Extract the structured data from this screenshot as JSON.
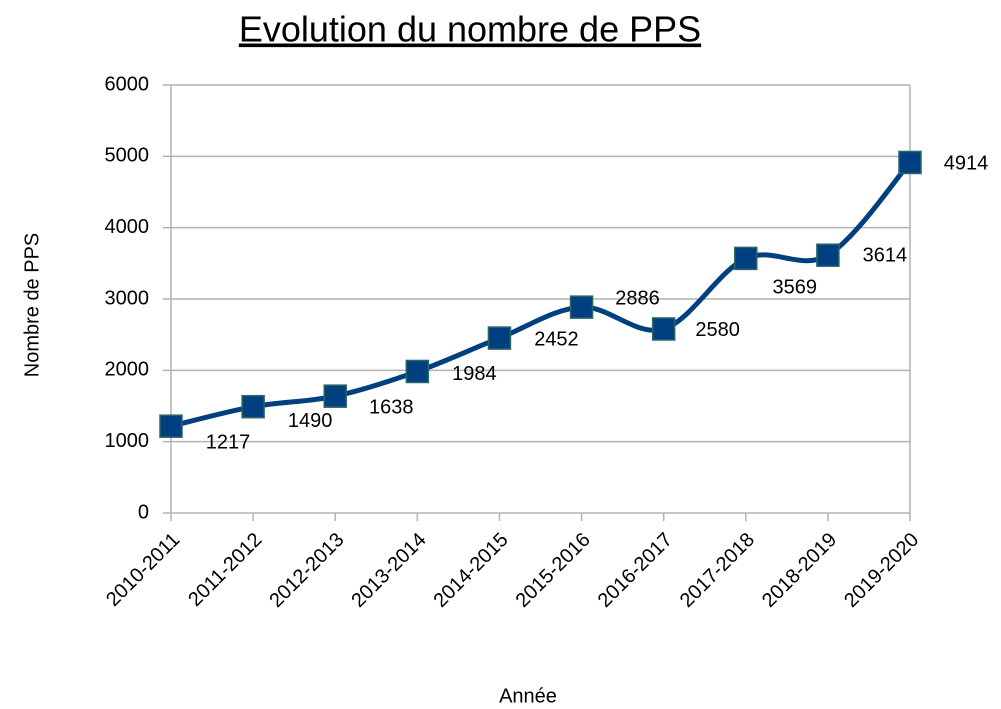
{
  "chart_data": {
    "type": "line",
    "title": "Evolution du nombre de PPS",
    "x_label": "Année",
    "y_label": "Nombre de PPS",
    "categories": [
      "2010-2011",
      "2011-2012",
      "2012-2013",
      "2013-2014",
      "2014-2015",
      "2015-2016",
      "2016-2017",
      "2017-2018",
      "2018-2019",
      "2019-2020"
    ],
    "series": [
      {
        "name": "Nombre de PPS",
        "color": "#004080",
        "values": [
          1217,
          1490,
          1638,
          1984,
          2452,
          2886,
          2580,
          3569,
          3614,
          4914
        ]
      }
    ],
    "ylim": [
      0,
      6000
    ],
    "yticks": [
      0,
      1000,
      2000,
      3000,
      4000,
      5000,
      6000
    ],
    "grid": true,
    "smooth": true
  }
}
